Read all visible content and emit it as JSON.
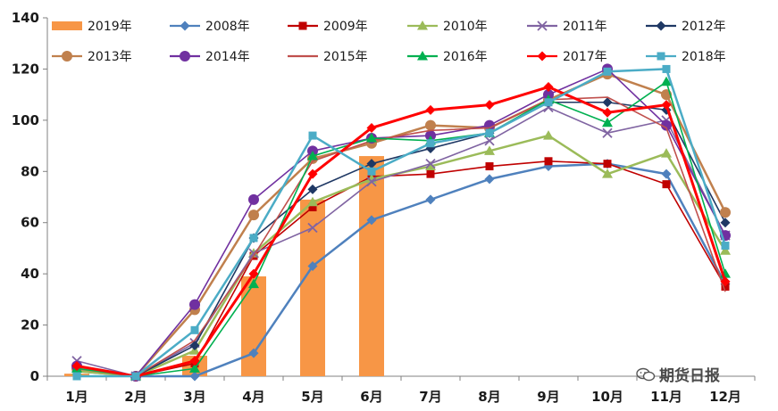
{
  "chart_data": {
    "type": "bar+line",
    "title": "",
    "xlabel": "",
    "ylabel": "",
    "ylim": [
      0,
      140
    ],
    "yticks": [
      0,
      20,
      40,
      60,
      80,
      100,
      120,
      140
    ],
    "grid": false,
    "legend_position": "top",
    "categories": [
      "1月",
      "2月",
      "3月",
      "4月",
      "5月",
      "6月",
      "7月",
      "8月",
      "9月",
      "10月",
      "11月",
      "12月"
    ],
    "bar_series": {
      "name": "2019年",
      "color": "#F79646",
      "values": [
        1,
        0,
        8,
        39,
        69,
        86,
        null,
        null,
        null,
        null,
        null,
        null
      ]
    },
    "series": [
      {
        "name": "2008年",
        "color": "#4F81BD",
        "marker": "diamond",
        "width": 2.5,
        "values": [
          2,
          0,
          0,
          9,
          43,
          61,
          69,
          77,
          82,
          83,
          79,
          36
        ]
      },
      {
        "name": "2009年",
        "color": "#C00000",
        "marker": "square",
        "width": 1.6,
        "values": [
          3,
          0,
          5,
          47,
          66,
          78,
          79,
          82,
          84,
          83,
          75,
          35
        ]
      },
      {
        "name": "2010年",
        "color": "#9BBB59",
        "marker": "triangle",
        "width": 2.5,
        "values": [
          2,
          0,
          10,
          48,
          68,
          77,
          82,
          88,
          94,
          79,
          87,
          49
        ]
      },
      {
        "name": "2011年",
        "color": "#8064A2",
        "marker": "x",
        "width": 1.6,
        "values": [
          6,
          0,
          13,
          48,
          58,
          76,
          83,
          92,
          105,
          95,
          100,
          55
        ]
      },
      {
        "name": "2012年",
        "color": "#1F3864",
        "marker": "diamond",
        "width": 1.6,
        "values": [
          3,
          0,
          12,
          54,
          73,
          83,
          89,
          95,
          107,
          107,
          104,
          60
        ]
      },
      {
        "name": "2013年",
        "color": "#C0804D",
        "marker": "circle",
        "width": 2.5,
        "values": [
          3,
          0,
          26,
          63,
          85,
          91,
          98,
          97,
          108,
          118,
          110,
          64
        ]
      },
      {
        "name": "2014年",
        "color": "#7030A0",
        "marker": "circle",
        "width": 1.6,
        "values": [
          4,
          0,
          28,
          69,
          88,
          93,
          94,
          98,
          110,
          120,
          98,
          55
        ]
      },
      {
        "name": "2015年",
        "color": "#C0504D",
        "marker": "none",
        "width": 1.6,
        "values": [
          4,
          0,
          14,
          47,
          84,
          92,
          96,
          97,
          108,
          109,
          97,
          33
        ]
      },
      {
        "name": "2016年",
        "color": "#00B050",
        "marker": "triangle",
        "width": 1.6,
        "values": [
          3,
          0,
          3,
          36,
          86,
          93,
          92,
          95,
          108,
          99,
          115,
          40
        ]
      },
      {
        "name": "2017年",
        "color": "#FF0000",
        "marker": "diamond",
        "width": 3,
        "values": [
          4,
          0,
          6,
          40,
          79,
          97,
          104,
          106,
          113,
          103,
          106,
          37
        ]
      },
      {
        "name": "2018年",
        "color": "#4BACC6",
        "marker": "square",
        "width": 2.5,
        "values": [
          0,
          0,
          18,
          54,
          94,
          80,
          91,
          95,
          107,
          119,
          120,
          51
        ]
      }
    ]
  },
  "watermark": {
    "text": "期货日报",
    "icon": "wechat-icon"
  }
}
